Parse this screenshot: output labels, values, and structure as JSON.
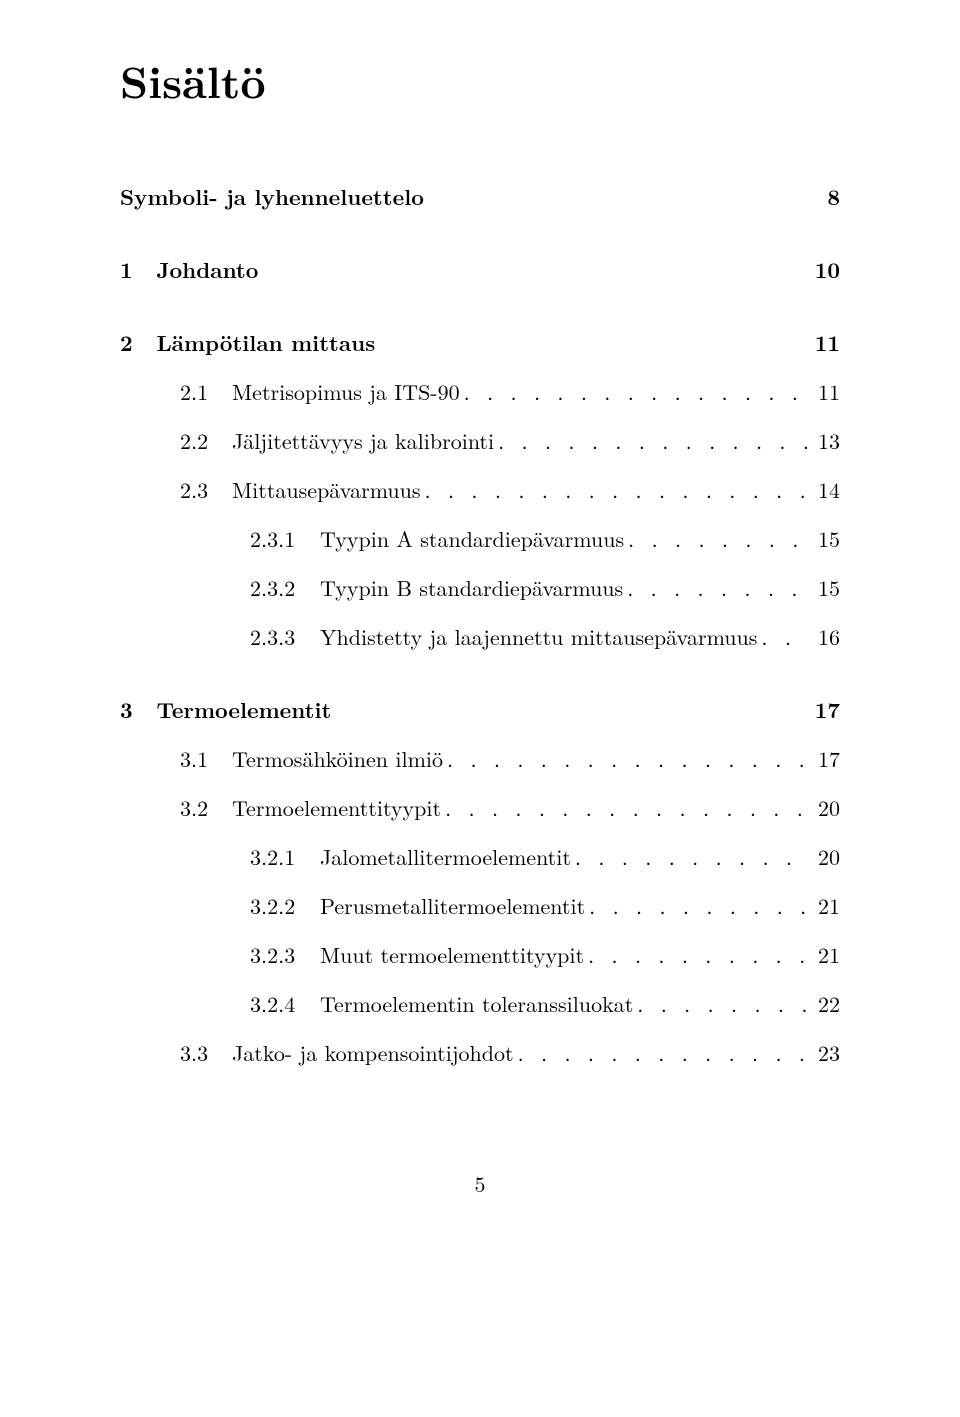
{
  "title": "Sisältö",
  "footer_page": "5",
  "dot_fill": ". . . . . . . . . . . . . . . . . . . . . . . . . . . . . . . . . . . . . . . . . . . . . . . . . . . . . . . . . . . . . . . . . . . . . . . . . . . . . . . . . . . . . . . . . . . . . . . . . . . . . . . . . . . . . . . . . .",
  "toc": [
    {
      "type": "section",
      "num": "",
      "label": "Symboli- ja lyhenneluettelo",
      "page": "8"
    },
    {
      "type": "section",
      "num": "1",
      "label": "Johdanto",
      "page": "10"
    },
    {
      "type": "section",
      "num": "2",
      "label": "Lämpötilan mittaus",
      "page": "11"
    },
    {
      "type": "sub",
      "num": "2.1",
      "label": "Metrisopimus ja ITS-90",
      "page": "11"
    },
    {
      "type": "sub",
      "num": "2.2",
      "label": "Jäljitettävyys ja kalibrointi",
      "page": "13"
    },
    {
      "type": "sub",
      "num": "2.3",
      "label": "Mittausepävarmuus",
      "page": "14"
    },
    {
      "type": "subsub",
      "num": "2.3.1",
      "label": "Tyypin A standardiepävarmuus",
      "page": "15"
    },
    {
      "type": "subsub",
      "num": "2.3.2",
      "label": "Tyypin B standardiepävarmuus",
      "page": "15"
    },
    {
      "type": "subsub",
      "num": "2.3.3",
      "label": "Yhdistetty ja laajennettu mittausepävarmuus",
      "page": "16"
    },
    {
      "type": "section",
      "num": "3",
      "label": "Termoelementit",
      "page": "17"
    },
    {
      "type": "sub",
      "num": "3.1",
      "label": "Termosähköinen ilmiö",
      "page": "17"
    },
    {
      "type": "sub",
      "num": "3.2",
      "label": "Termoelementtityypit",
      "page": "20"
    },
    {
      "type": "subsub",
      "num": "3.2.1",
      "label": "Jalometallitermoelementit",
      "page": "20"
    },
    {
      "type": "subsub",
      "num": "3.2.2",
      "label": "Perusmetallitermoelementit",
      "page": "21"
    },
    {
      "type": "subsub",
      "num": "3.2.3",
      "label": "Muut termoelementtityypit",
      "page": "21"
    },
    {
      "type": "subsub",
      "num": "3.2.4",
      "label": "Termoelementin toleranssiluokat",
      "page": "22"
    },
    {
      "type": "sub",
      "num": "3.3",
      "label": "Jatko- ja kompensointijohdot",
      "page": "23"
    }
  ]
}
